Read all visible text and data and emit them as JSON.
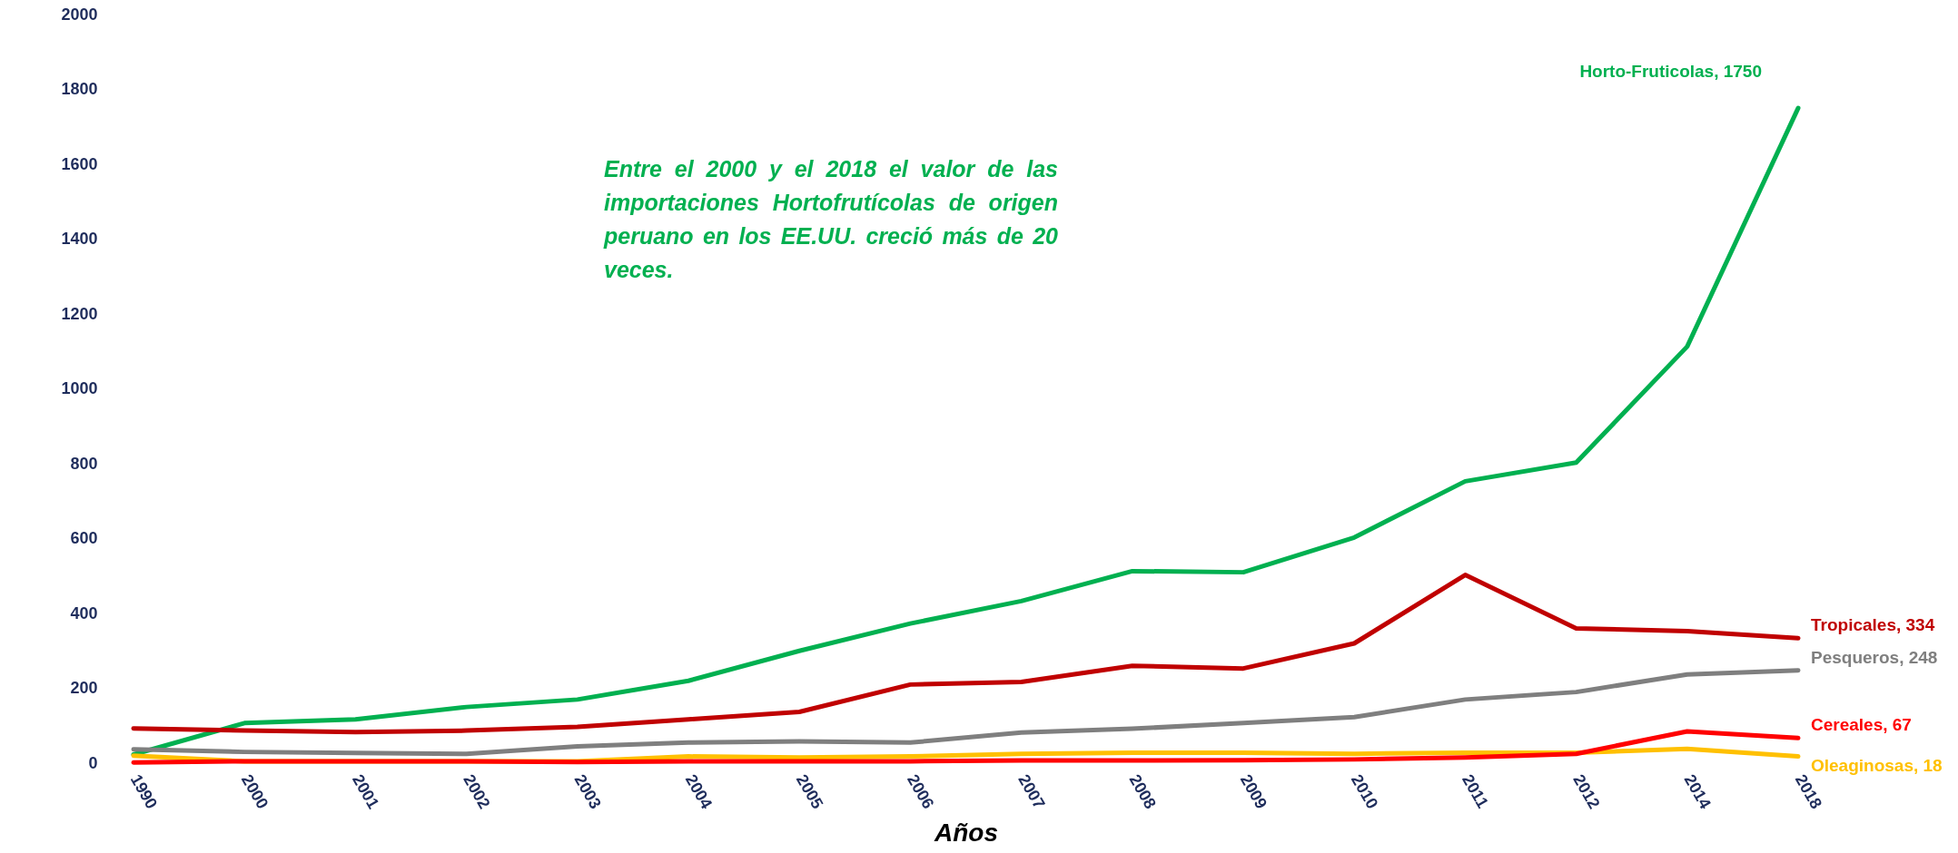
{
  "chart_data": {
    "type": "line",
    "xlabel": "Años",
    "categories": [
      "1990",
      "2000",
      "2001",
      "2002",
      "2003",
      "2004",
      "2005",
      "2006",
      "2007",
      "2008",
      "2009",
      "2010",
      "2011",
      "2012",
      "2014",
      "2018"
    ],
    "series": [
      {
        "color": "#00b050",
        "values": [
          23,
          107,
          117,
          150,
          170,
          220,
          300,
          373,
          433,
          513,
          510,
          603,
          753,
          803,
          1113,
          1750
        ]
      },
      {
        "color": "#c00000",
        "values": [
          93,
          87,
          83,
          87,
          97,
          117,
          137,
          210,
          217,
          260,
          253,
          320,
          503,
          360,
          353,
          334
        ]
      },
      {
        "color": "#7f7f7f",
        "values": [
          37,
          30,
          27,
          25,
          45,
          55,
          58,
          55,
          82,
          92,
          107,
          123,
          170,
          190,
          237,
          248
        ]
      },
      {
        "color": "#ffc000",
        "values": [
          20,
          5,
          5,
          5,
          5,
          18,
          15,
          18,
          25,
          28,
          28,
          25,
          28,
          28,
          38,
          18
        ]
      },
      {
        "color": "#ff0000",
        "values": [
          2,
          5,
          5,
          5,
          3,
          5,
          5,
          5,
          7,
          7,
          8,
          10,
          15,
          25,
          85,
          67
        ]
      }
    ],
    "ylim": [
      0,
      2000
    ],
    "yticks": [
      0,
      200,
      400,
      600,
      800,
      1000,
      1200,
      1400,
      1600,
      1800,
      2000
    ],
    "grid": false,
    "line_style": "solid",
    "marker": "none",
    "annotations": [
      {
        "text": "Horto-Fruticolas, 1750",
        "x": "2018",
        "y": 1750
      },
      {
        "text": "Tropicales, 334",
        "x": "2018",
        "y": 334
      },
      {
        "text": "Pesqueros, 248",
        "x": "2018",
        "y": 248
      },
      {
        "text": "Oleaginosas, 18",
        "x": "2018",
        "y": 18
      },
      {
        "text": "Cereales, 67",
        "x": "2018",
        "y": 67
      },
      "Entre el 2000 y el 2018  el valor de las importaciones Hortofrutícolas de origen peruano en los EE.UU. creció más de 20 veces."
    ]
  }
}
